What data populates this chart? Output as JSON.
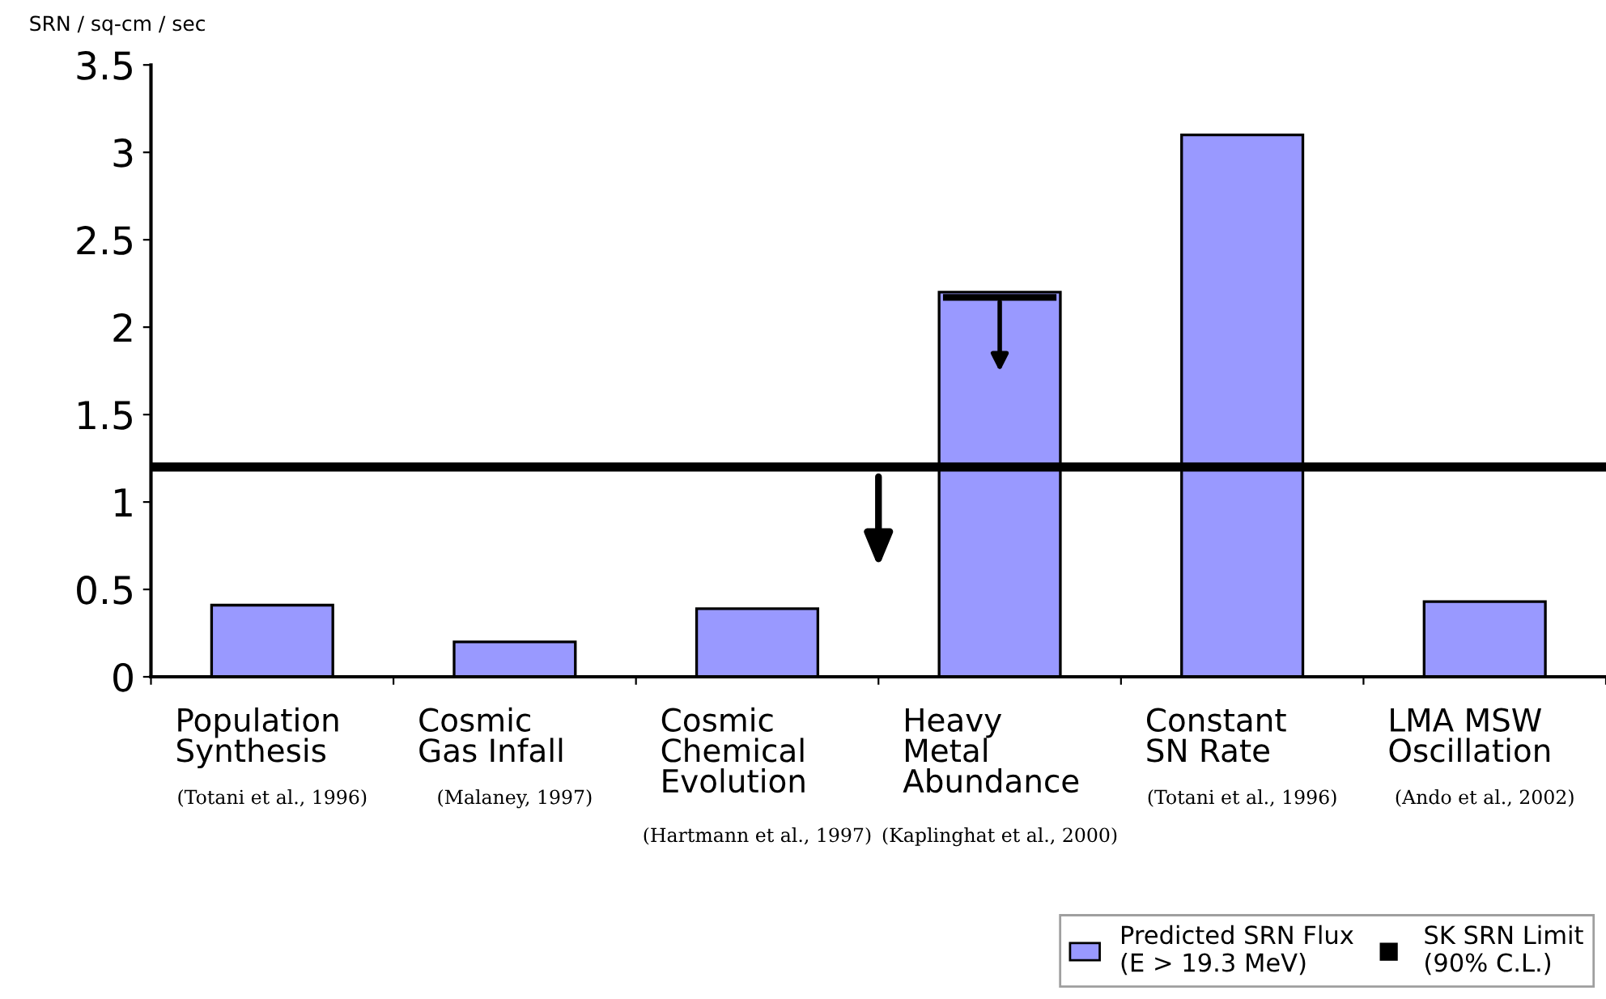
{
  "chart_data": {
    "type": "bar",
    "ylabel": "SRN / sq-cm / sec",
    "categories": [
      "Population\nSynthesis\n(Totani et al., 1996)",
      "Cosmic\nGas Infall\n(Malaney, 1997)",
      "Cosmic\nChemical\nEvolution\n(Hartmann et al., 1997)",
      "Heavy\nMetal\nAbundance\n(Kaplinghat et al., 2000)",
      "Constant\nSN Rate\n(Totani et al., 1996)",
      "LMA MSW\nOscillation\n(Ando et al., 2002)"
    ],
    "series": [
      {
        "name": "Predicted SRN Flux\n(E > 19.3 MeV)",
        "color": "#9999ff",
        "values": [
          0.41,
          0.2,
          0.39,
          2.2,
          3.1,
          0.43
        ]
      }
    ],
    "ylim": [
      0,
      3.5
    ],
    "yticks": [
      0,
      0.5,
      1,
      1.5,
      2,
      2.5,
      3,
      3.5
    ],
    "ref_lines": [
      {
        "axis": "y",
        "value": 1.2,
        "label": "SK SRN Limit\n(90% C.L.)",
        "color": "#000000",
        "line_style": "solid"
      }
    ],
    "legend": "bottom right"
  }
}
